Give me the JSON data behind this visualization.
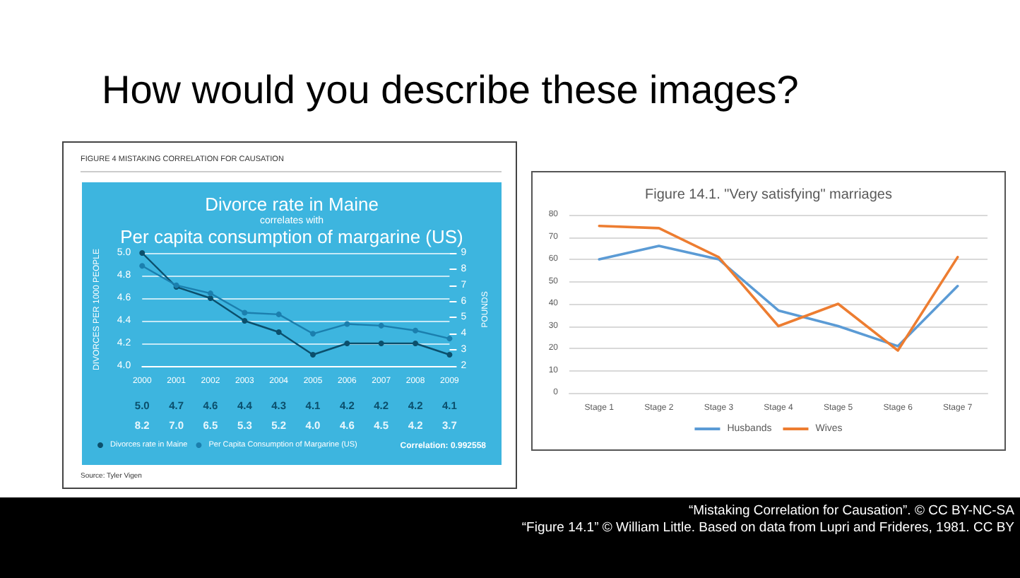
{
  "chart_data": [
    {
      "type": "other",
      "title": "How would you describe these images?",
      "annotations": [
        "“Mistaking Correlation for Causation”. © CC BY-NC-SA",
        "“Figure 14.1” © William Little. Based on data from Lupri and Frideres, 1981. CC BY"
      ]
    },
    {
      "type": "line",
      "title": "Divorce rate in Maine",
      "subtitle": "correlates with",
      "annotations": [
        "FIGURE 4 MISTAKING CORRELATION FOR CAUSATION",
        "Per capita consumption of margarine (US)",
        "Correlation: 0.992558",
        "Source: Tyler Vigen"
      ],
      "ylabel": "DIVORCES PER 1000 PEOPLE",
      "y2label": "POUNDS",
      "categories": [
        "2000",
        "2001",
        "2002",
        "2003",
        "2004",
        "2005",
        "2006",
        "2007",
        "2008",
        "2009"
      ],
      "series": [
        {
          "name": "Divorces rate in Maine",
          "color": "#0b4f6c",
          "values": [
            5.0,
            4.7,
            4.6,
            4.4,
            4.3,
            4.1,
            4.2,
            4.2,
            4.2,
            4.1
          ],
          "value_labels": [
            "5.0",
            "4.7",
            "4.6",
            "4.4",
            "4.3",
            "4.1",
            "4.2",
            "4.2",
            "4.2",
            "4.1"
          ]
        },
        {
          "name": "Per Capita Consumption of Margarine (US)",
          "color": "#1b7fae",
          "axis": "y2",
          "values": [
            8.2,
            7.0,
            6.5,
            5.3,
            5.2,
            4.0,
            4.6,
            4.5,
            4.2,
            3.7
          ],
          "value_labels": [
            "8.2",
            "7.0",
            "6.5",
            "5.3",
            "5.2",
            "4.0",
            "4.6",
            "4.5",
            "4.2",
            "3.7"
          ]
        }
      ],
      "ylim": [
        4.0,
        5.0
      ],
      "yticks": [
        {
          "value": 4,
          "label": "4.0"
        },
        4.2,
        4.4,
        4.6,
        4.8,
        {
          "value": 5,
          "label": "5.0"
        }
      ],
      "y2lim": [
        2,
        9
      ],
      "y2ticks": [
        2,
        3,
        4,
        5,
        6,
        7,
        8,
        9
      ],
      "grid": "y",
      "legend": "bottom left",
      "marker": "circle"
    },
    {
      "type": "line",
      "title": "Figure 14.1. \"Very satisfying\" marriages",
      "categories": [
        "Stage 1",
        "Stage 2",
        "Stage 3",
        "Stage 4",
        "Stage 5",
        "Stage 6",
        "Stage 7"
      ],
      "series": [
        {
          "name": "Husbands",
          "color": "#5b9bd5",
          "values": [
            60,
            66,
            60,
            37,
            30,
            21,
            48
          ]
        },
        {
          "name": "Wives",
          "color": "#ed7d31",
          "values": [
            75,
            74,
            61,
            30,
            40,
            19,
            61
          ]
        }
      ],
      "ylim": [
        0,
        80
      ],
      "yticks": [
        0,
        10,
        20,
        30,
        40,
        50,
        60,
        70,
        80
      ],
      "grid": "y",
      "legend": "bottom"
    }
  ]
}
